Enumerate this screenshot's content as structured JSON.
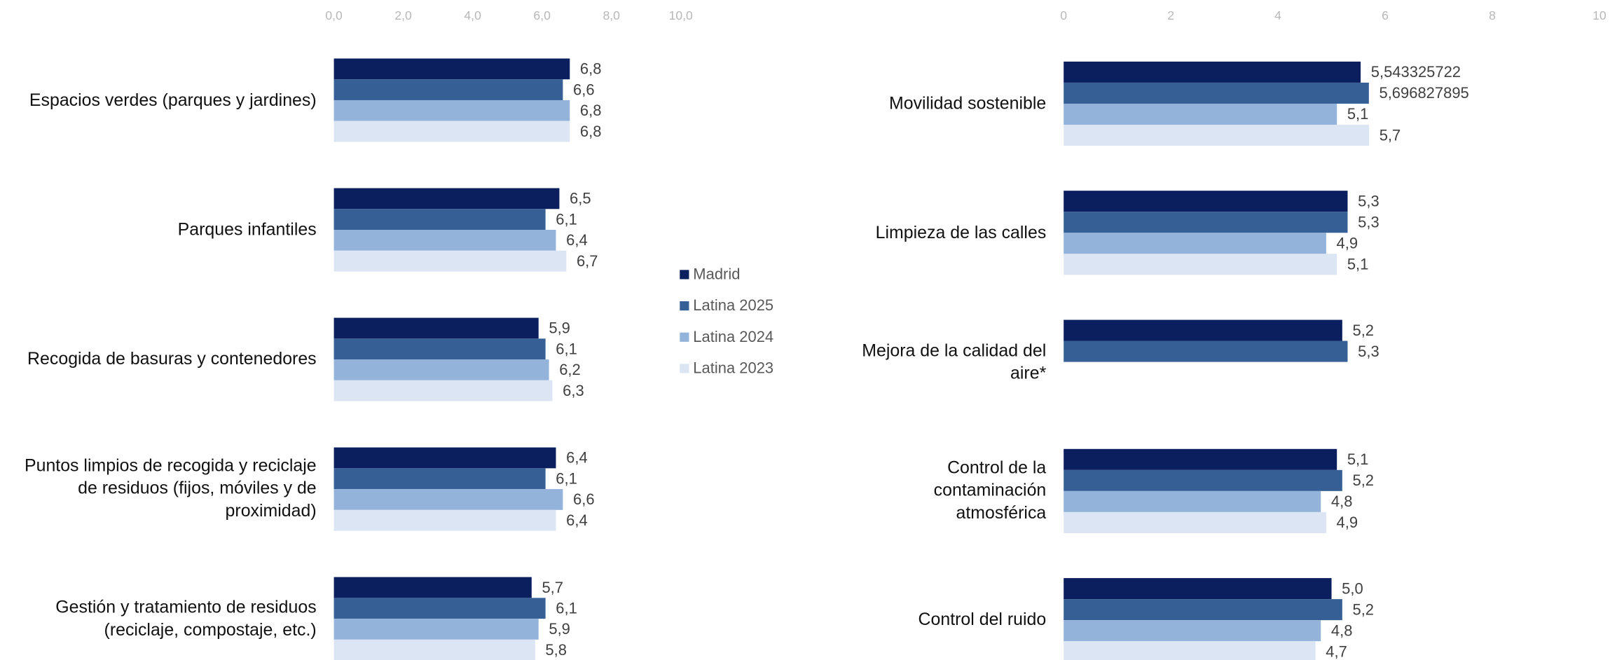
{
  "chart_data": [
    {
      "type": "barh",
      "categories": [
        "Espacios verdes (parques y jardines)",
        "Parques infantiles",
        "Recogida de basuras y contenedores",
        "Puntos limpios de recogida y reciclaje\nde residuos (fijos, móviles y de\nproximidad)",
        "Gestión y tratamiento de residuos\n(reciclaje,  compostaje, etc.)"
      ],
      "series": [
        {
          "name": "Madrid",
          "color": "#0b1f5e",
          "values": [
            6.8,
            6.5,
            5.9,
            6.4,
            5.7
          ],
          "value_labels": [
            "6,8",
            "6,5",
            "5,9",
            "6,4",
            "5,7"
          ]
        },
        {
          "name": "Latina 2025",
          "color": "#355f95",
          "values": [
            6.6,
            6.1,
            6.1,
            6.1,
            6.1
          ],
          "value_labels": [
            "6,6",
            "6,1",
            "6,1",
            "6,1",
            "6,1"
          ]
        },
        {
          "name": "Latina 2024",
          "color": "#94b3da",
          "values": [
            6.8,
            6.4,
            6.2,
            6.6,
            5.9
          ],
          "value_labels": [
            "6,8",
            "6,4",
            "6,2",
            "6,6",
            "5,9"
          ]
        },
        {
          "name": "Latina 2023",
          "color": "#dbe5f3",
          "values": [
            6.8,
            6.7,
            6.3,
            6.4,
            5.8
          ],
          "value_labels": [
            "6,8",
            "6,7",
            "6,3",
            "6,4",
            "5,8"
          ]
        }
      ],
      "xlim": [
        0,
        10
      ],
      "xticks": [
        {
          "value": 0,
          "label": "0,0"
        },
        {
          "value": 2,
          "label": "2,0"
        },
        {
          "value": 4,
          "label": "4,0"
        },
        {
          "value": 6,
          "label": "6,0"
        },
        {
          "value": 8,
          "label": "8,0"
        },
        {
          "value": 10,
          "label": "10,0"
        }
      ],
      "legend": "center-right"
    },
    {
      "type": "barh",
      "categories": [
        "Movilidad sostenible",
        "Limpieza de las calles",
        "Mejora de la calidad del\naire*",
        "Control de la\ncontaminación\natmosférica",
        "Control del ruido"
      ],
      "series": [
        {
          "color": "#0b1f5e",
          "values": [
            5.543325722,
            5.3,
            5.2,
            5.1,
            5.0
          ],
          "value_labels": [
            "5,543325722",
            "5,3",
            "5,2",
            "5,1",
            "5,0"
          ]
        },
        {
          "color": "#355f95",
          "values": [
            5.696827895,
            5.3,
            5.3,
            5.2,
            5.2
          ],
          "value_labels": [
            "5,696827895",
            "5,3",
            "5,3",
            "5,2",
            "5,2"
          ]
        },
        {
          "color": "#94b3da",
          "values": [
            5.1,
            4.9,
            null,
            4.8,
            4.8
          ],
          "value_labels": [
            "5,1",
            "4,9",
            null,
            "4,8",
            "4,8"
          ]
        },
        {
          "color": "#dbe5f3",
          "values": [
            5.7,
            5.1,
            null,
            4.9,
            4.7
          ],
          "value_labels": [
            "5,7",
            "5,1",
            null,
            "4,9",
            "4,7"
          ]
        }
      ],
      "xlim": [
        0,
        10
      ],
      "xticks": [
        0,
        2,
        4,
        6,
        8,
        10
      ]
    }
  ]
}
